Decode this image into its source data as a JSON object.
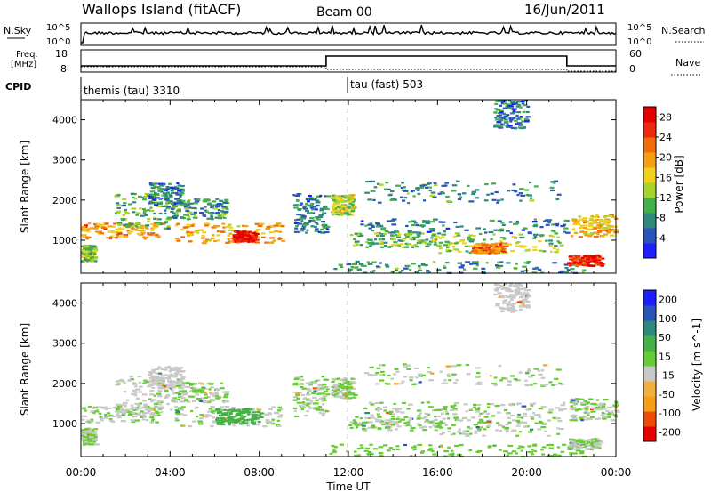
{
  "header": {
    "title": "Wallops Island (fitACF)",
    "beam": "Beam 00",
    "date": "16/Jun/2011"
  },
  "top_panels": {
    "nsky_label": "N.Sky",
    "nsky_ticks": [
      "10^5",
      "10^0"
    ],
    "nsearch_label": "N.Search",
    "nsearch_ticks": [
      "10^5",
      "10^0"
    ],
    "freq_label_line1": "Freq.",
    "freq_label_line2": "[MHz]",
    "freq_ticks": [
      "18",
      "8"
    ],
    "nave_label": "Nave",
    "nave_ticks": [
      "60",
      "0"
    ],
    "cpid_label": "CPID",
    "cpid_segments": [
      {
        "label": "themis (tau) 3310",
        "start_hour": 0
      },
      {
        "label": "tau (fast) 503",
        "start_hour": 12
      }
    ]
  },
  "chart_data": [
    {
      "type": "heatmap",
      "title": "",
      "ylabel": "Slant Range [km]",
      "xlabel": "",
      "x_hours": [
        0,
        24
      ],
      "ylim": [
        180,
        4500
      ],
      "yticks": [
        1000,
        2000,
        3000,
        4000
      ],
      "colorbar": {
        "label": "Power [dB]",
        "ticks": [
          4,
          8,
          12,
          16,
          20,
          24,
          28
        ],
        "range": [
          0,
          30
        ],
        "colors": [
          "#1e1eff",
          "#2a54b8",
          "#2e8a7a",
          "#44b048",
          "#a6d22a",
          "#f0d21e",
          "#f5a014",
          "#f06e0a",
          "#ec2a10",
          "#e60000"
        ]
      },
      "echo_regions": [
        {
          "t0": 0.0,
          "t1": 0.6,
          "r0": 500,
          "r1": 900,
          "level": 12
        },
        {
          "t0": 0.0,
          "t1": 3.6,
          "r0": 1050,
          "r1": 1450,
          "level": 20
        },
        {
          "t0": 1.5,
          "t1": 4.2,
          "r0": 1300,
          "r1": 2200,
          "level": 10
        },
        {
          "t0": 3.0,
          "t1": 4.5,
          "r0": 1900,
          "r1": 2450,
          "level": 7
        },
        {
          "t0": 4.2,
          "t1": 9.0,
          "r0": 950,
          "r1": 1450,
          "level": 19
        },
        {
          "t0": 6.8,
          "t1": 7.8,
          "r0": 980,
          "r1": 1250,
          "level": 28
        },
        {
          "t0": 4.0,
          "t1": 6.5,
          "r0": 1550,
          "r1": 2050,
          "level": 9
        },
        {
          "t0": 9.5,
          "t1": 11.0,
          "r0": 1200,
          "r1": 2200,
          "level": 7
        },
        {
          "t0": 11.2,
          "t1": 12.2,
          "r0": 1650,
          "r1": 2150,
          "level": 14
        },
        {
          "t0": 11.0,
          "t1": 22.5,
          "r0": 200,
          "r1": 500,
          "level": 8
        },
        {
          "t0": 12.5,
          "t1": 21.8,
          "r0": 1200,
          "r1": 1550,
          "level": 7
        },
        {
          "t0": 12.0,
          "t1": 16.0,
          "r0": 850,
          "r1": 1200,
          "level": 11
        },
        {
          "t0": 16.0,
          "t1": 21.5,
          "r0": 700,
          "r1": 1200,
          "level": 13
        },
        {
          "t0": 17.5,
          "t1": 19.0,
          "r0": 700,
          "r1": 950,
          "level": 22
        },
        {
          "t0": 12.5,
          "t1": 21.5,
          "r0": 1950,
          "r1": 2500,
          "level": 8
        },
        {
          "t0": 21.9,
          "t1": 24.0,
          "r0": 1100,
          "r1": 1650,
          "level": 17
        },
        {
          "t0": 21.8,
          "t1": 23.3,
          "r0": 380,
          "r1": 650,
          "level": 26
        },
        {
          "t0": 18.5,
          "t1": 20.0,
          "r0": 3800,
          "r1": 4500,
          "level": 6
        }
      ]
    },
    {
      "type": "heatmap",
      "title": "",
      "ylabel": "Slant Range [km]",
      "xlabel": "Time UT",
      "x_hours": [
        0,
        24
      ],
      "xticks": [
        "00:00",
        "04:00",
        "08:00",
        "12:00",
        "16:00",
        "20:00",
        "00:00"
      ],
      "ylim": [
        180,
        4500
      ],
      "yticks": [
        1000,
        2000,
        3000,
        4000
      ],
      "colorbar": {
        "label": "Velocity [m s^-1]",
        "ticks": [
          200,
          100,
          50,
          15,
          -15,
          -50,
          -100,
          -200
        ],
        "range": [
          -250,
          250
        ],
        "colors": [
          "#e60000",
          "#f04a0a",
          "#f5a014",
          "#f0b040",
          "#c8c8c8",
          "#66cc33",
          "#44b048",
          "#2e8a7a",
          "#2a54b8",
          "#1e1eff"
        ]
      },
      "echo_regions": [
        {
          "t0": 0.0,
          "t1": 0.6,
          "r0": 500,
          "r1": 900,
          "v": 0
        },
        {
          "t0": 0.0,
          "t1": 3.6,
          "r0": 1050,
          "r1": 1450,
          "v": 0
        },
        {
          "t0": 1.5,
          "t1": 4.2,
          "r0": 1300,
          "r1": 2200,
          "v": -5
        },
        {
          "t0": 3.0,
          "t1": 4.5,
          "r0": 1900,
          "r1": 2450,
          "v": -30
        },
        {
          "t0": 4.2,
          "t1": 9.0,
          "r0": 950,
          "r1": 1450,
          "v": 0
        },
        {
          "t0": 6.0,
          "t1": 8.0,
          "r0": 1000,
          "r1": 1400,
          "v": 60
        },
        {
          "t0": 4.0,
          "t1": 6.5,
          "r0": 1550,
          "r1": 2050,
          "v": 0
        },
        {
          "t0": 9.5,
          "t1": 11.0,
          "r0": 1200,
          "r1": 2200,
          "v": 0
        },
        {
          "t0": 11.2,
          "t1": 12.2,
          "r0": 1650,
          "r1": 2150,
          "v": 0
        },
        {
          "t0": 11.0,
          "t1": 22.5,
          "r0": 200,
          "r1": 500,
          "v": 40
        },
        {
          "t0": 12.5,
          "t1": 21.8,
          "r0": 1200,
          "r1": 1550,
          "v": 0
        },
        {
          "t0": 12.0,
          "t1": 16.0,
          "r0": 850,
          "r1": 1200,
          "v": 0
        },
        {
          "t0": 16.0,
          "t1": 21.5,
          "r0": 700,
          "r1": 1200,
          "v": 0
        },
        {
          "t0": 12.5,
          "t1": 21.5,
          "r0": 1950,
          "r1": 2500,
          "v": 0
        },
        {
          "t0": 21.9,
          "t1": 24.0,
          "r0": 1100,
          "r1": 1650,
          "v": 0
        },
        {
          "t0": 21.8,
          "t1": 23.3,
          "r0": 380,
          "r1": 650,
          "v": 0
        },
        {
          "t0": 18.5,
          "t1": 20.0,
          "r0": 3800,
          "r1": 4500,
          "v": -20
        }
      ]
    }
  ]
}
